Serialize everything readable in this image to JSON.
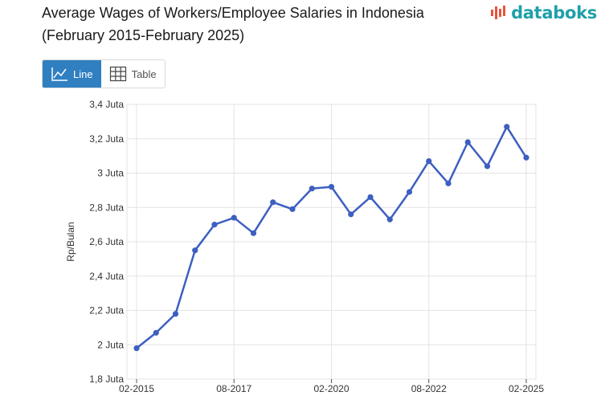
{
  "title_line1": "Average Wages of Workers/Employee Salaries in Indonesia",
  "title_line2": "(February 2015-February 2025)",
  "brand": {
    "name": "databoks",
    "color": "#1fa0a8",
    "accent": "#e8543a"
  },
  "toggle": {
    "line_label": "Line",
    "line_icon": "line-chart-icon",
    "table_label": "Table",
    "table_icon": "table-grid-icon",
    "active_color": "#2f7fc1"
  },
  "chart_data": {
    "type": "line",
    "title": "",
    "xlabel": "",
    "ylabel": "Rp/Bulan",
    "ylim": [
      1.8,
      3.4
    ],
    "y_ticks": [
      "1,8 Juta",
      "2 Juta",
      "2,2 Juta",
      "2,4 Juta",
      "2,6 Juta",
      "2,8 Juta",
      "3 Juta",
      "3,2 Juta",
      "3,4 Juta"
    ],
    "x_tick_labels": [
      "02-2015",
      "08-2017",
      "02-2020",
      "08-2022",
      "02-2025"
    ],
    "x": [
      "02-2015",
      "08-2015",
      "02-2016",
      "08-2016",
      "02-2017",
      "08-2017",
      "02-2018",
      "08-2018",
      "02-2019",
      "08-2019",
      "02-2020",
      "08-2020",
      "02-2021",
      "08-2021",
      "02-2022",
      "08-2022",
      "02-2023",
      "08-2023",
      "02-2024",
      "08-2024",
      "02-2025"
    ],
    "series": [
      {
        "color": "#3d5fc0",
        "values": [
          1.98,
          2.07,
          2.18,
          2.55,
          2.7,
          2.74,
          2.65,
          2.83,
          2.79,
          2.91,
          2.92,
          2.76,
          2.86,
          2.73,
          2.89,
          3.07,
          2.94,
          3.18,
          3.04,
          3.27,
          3.09
        ]
      }
    ],
    "grid": true,
    "legend": "none"
  }
}
